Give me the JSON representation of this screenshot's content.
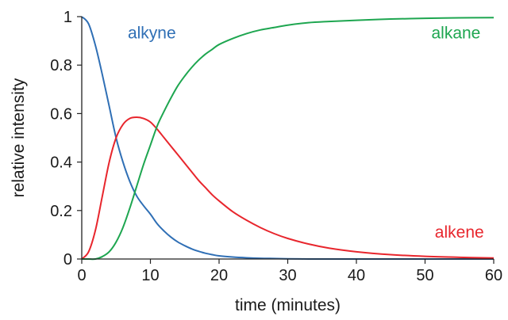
{
  "chart_data": {
    "type": "line",
    "title": "",
    "xlabel": "time (minutes)",
    "ylabel": "relative intensity",
    "xlim": [
      0,
      60
    ],
    "ylim": [
      0,
      1
    ],
    "x_ticks": [
      0,
      10,
      20,
      30,
      40,
      50,
      60
    ],
    "y_ticks": [
      0,
      0.2,
      0.4,
      0.6,
      0.8,
      1
    ],
    "y_tick_labels": [
      "0",
      "0.2",
      "0.4",
      "0.6",
      "0.8",
      "1"
    ],
    "grid": false,
    "legend": "none",
    "x": [
      0,
      1,
      2,
      3,
      4,
      5,
      6,
      7,
      8,
      9,
      10,
      11,
      12,
      13,
      14,
      15,
      16,
      17,
      18,
      19,
      20,
      22,
      24,
      26,
      28,
      30,
      33,
      36,
      40,
      45,
      50,
      55,
      60
    ],
    "series": [
      {
        "name": "alkyne",
        "color": "#2f6fb5",
        "values": [
          1.0,
          0.97,
          0.88,
          0.76,
          0.63,
          0.5,
          0.4,
          0.32,
          0.26,
          0.22,
          0.185,
          0.145,
          0.115,
          0.09,
          0.07,
          0.055,
          0.042,
          0.032,
          0.024,
          0.018,
          0.013,
          0.008,
          0.005,
          0.003,
          0.002,
          0.001,
          0.0,
          0.0,
          0.0,
          0.0,
          0.0,
          0.0,
          0.0
        ]
      },
      {
        "name": "alkene",
        "color": "#e8262d",
        "values": [
          0.0,
          0.03,
          0.12,
          0.26,
          0.4,
          0.5,
          0.555,
          0.58,
          0.585,
          0.58,
          0.565,
          0.535,
          0.5,
          0.465,
          0.43,
          0.395,
          0.36,
          0.325,
          0.295,
          0.265,
          0.24,
          0.195,
          0.16,
          0.13,
          0.105,
          0.085,
          0.062,
          0.045,
          0.03,
          0.018,
          0.011,
          0.007,
          0.004
        ]
      },
      {
        "name": "alkane",
        "color": "#1ea650",
        "values": [
          0.0,
          0.0,
          0.0,
          0.01,
          0.03,
          0.07,
          0.13,
          0.21,
          0.3,
          0.39,
          0.47,
          0.55,
          0.61,
          0.665,
          0.715,
          0.755,
          0.79,
          0.82,
          0.845,
          0.865,
          0.885,
          0.91,
          0.93,
          0.945,
          0.955,
          0.965,
          0.975,
          0.98,
          0.985,
          0.99,
          0.993,
          0.995,
          0.996
        ]
      }
    ]
  }
}
